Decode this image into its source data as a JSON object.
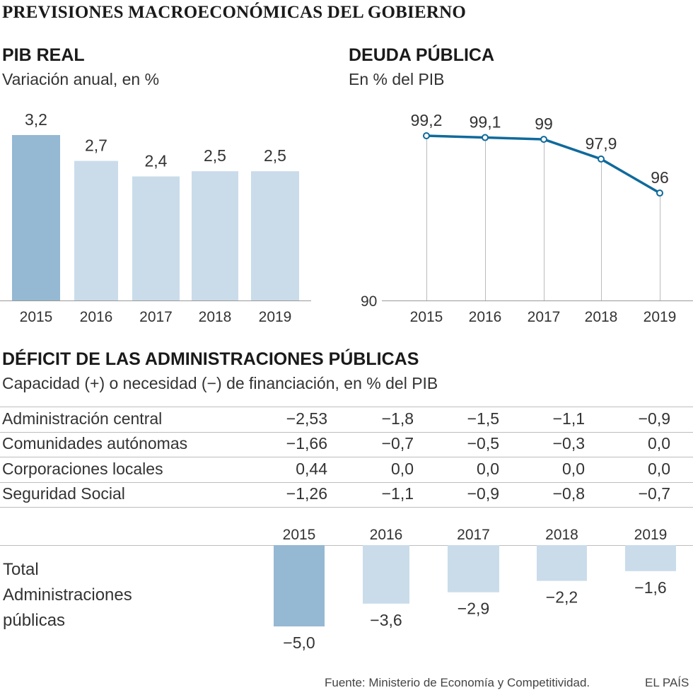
{
  "title": "PREVISIONES MACROECONÓMICAS DEL GOBIERNO",
  "source": "Fuente: Ministerio de Economía y Competitividad.",
  "brand": "EL PAÍS",
  "colors": {
    "highlight": "#95b8d3",
    "normal": "#cadcea",
    "line": "#0f6a9c",
    "grid": "#bdbdbd"
  },
  "chart_data": [
    {
      "type": "bar",
      "title": "PIB REAL",
      "subtitle": "Variación anual, en %",
      "categories": [
        "2015",
        "2016",
        "2017",
        "2018",
        "2019"
      ],
      "values": [
        3.2,
        2.7,
        2.4,
        2.5,
        2.5
      ],
      "labels": [
        "3,2",
        "2,7",
        "2,4",
        "2,5",
        "2,5"
      ],
      "ylim": [
        0,
        3.2
      ]
    },
    {
      "type": "line",
      "title": "DEUDA PÚBLICA",
      "subtitle": "En % del PIB",
      "categories": [
        "2015",
        "2016",
        "2017",
        "2018",
        "2019"
      ],
      "values": [
        99.2,
        99.1,
        99,
        97.9,
        96
      ],
      "labels": [
        "99,2",
        "99,1",
        "99",
        "97,9",
        "96"
      ],
      "ylim": [
        90,
        99.2
      ],
      "baseline_label": "90"
    },
    {
      "type": "table",
      "title": "DÉFICIT DE LAS ADMINISTRACIONES PÚBLICAS",
      "subtitle": "Capacidad (+) o necesidad (−) de financiación, en % del PIB",
      "columns": [
        "2015",
        "2016",
        "2017",
        "2018",
        "2019"
      ],
      "rows": [
        {
          "label": "Administración central",
          "values": [
            "−2,53",
            "−1,8",
            "−1,5",
            "−1,1",
            "−0,9"
          ]
        },
        {
          "label": "Comunidades autónomas",
          "values": [
            "−1,66",
            "−0,7",
            "−0,5",
            "−0,3",
            "0,0"
          ]
        },
        {
          "label": "Corporaciones locales",
          "values": [
            "0,44",
            "0,0",
            "0,0",
            "0,0",
            "0,0"
          ]
        },
        {
          "label": "Seguridad Social",
          "values": [
            "−1,26",
            "−1,1",
            "−0,9",
            "−0,8",
            "−0,7"
          ]
        }
      ]
    },
    {
      "type": "bar",
      "title": "Total Administraciones públicas",
      "label_lines": [
        "Total",
        "Administraciones",
        "públicas"
      ],
      "categories": [
        "2015",
        "2016",
        "2017",
        "2018",
        "2019"
      ],
      "values": [
        -5.0,
        -3.6,
        -2.9,
        -2.2,
        -1.6
      ],
      "labels": [
        "−5,0",
        "−3,6",
        "−2,9",
        "−2,2",
        "−1,6"
      ],
      "ylim": [
        -5.0,
        0
      ]
    }
  ]
}
